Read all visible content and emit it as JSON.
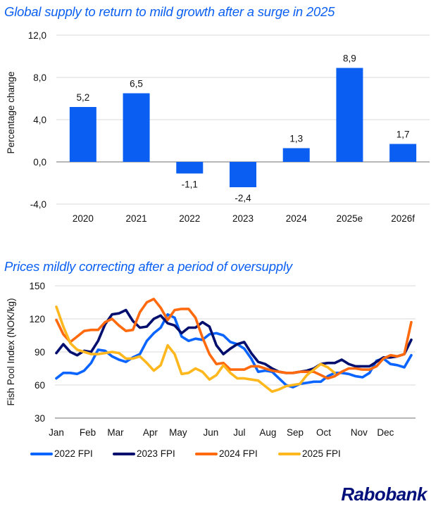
{
  "brand": {
    "logo_text": "Rabobank",
    "title_color": "#0a5ff2",
    "logo_color": "#000f7a"
  },
  "chart_data": [
    {
      "type": "bar",
      "title": "Global supply to return to mild growth after a surge in 2025",
      "xlabel": "",
      "ylabel": "Percentage change",
      "categories": [
        "2020",
        "2021",
        "2022",
        "2023",
        "2024",
        "2025e",
        "2026f"
      ],
      "values": [
        5.2,
        6.5,
        -1.1,
        -2.4,
        1.3,
        8.9,
        1.7
      ],
      "data_labels": [
        "5,2",
        "6,5",
        "-1,1",
        "-2,4",
        "1,3",
        "8,9",
        "1,7"
      ],
      "ylim": [
        -4,
        12
      ],
      "yticks": [
        -4,
        0,
        4,
        8,
        12
      ],
      "ytick_labels": [
        "-4,0",
        "0,0",
        "4,0",
        "8,0",
        "12,0"
      ],
      "grid": true,
      "bar_color": "#0a5ff2"
    },
    {
      "type": "line",
      "title": "Prices mildly correcting after a period of oversupply",
      "xlabel": "",
      "ylabel": "Fish Pool Index (NOK/kg)",
      "ylim": [
        30,
        150
      ],
      "yticks": [
        30,
        60,
        90,
        120,
        150
      ],
      "ytick_labels": [
        "30",
        "60",
        "90",
        "120",
        "150"
      ],
      "x_unit": "week",
      "xlim": [
        1,
        52
      ],
      "month_labels": [
        "Jan",
        "Feb",
        "Mar",
        "Apr",
        "May",
        "Jun",
        "Jul",
        "Aug",
        "Sep",
        "Oct",
        "Nov",
        "Dec"
      ],
      "month_label_weeks": [
        1,
        5.5,
        9.5,
        14.5,
        18.5,
        23.2,
        27.3,
        31.4,
        35.3,
        39.4,
        44.5,
        48.3
      ],
      "grid": true,
      "legend": "bottom",
      "series": [
        {
          "name": "2022 FPI",
          "color": "#0a64ff",
          "values": [
            66,
            71,
            71,
            70,
            73,
            80,
            92,
            91,
            86,
            83,
            81,
            85,
            88,
            100,
            107,
            112,
            124,
            121,
            104,
            100,
            102,
            101,
            106,
            107,
            105,
            99,
            97,
            93,
            84,
            72,
            73,
            72,
            66,
            60,
            58,
            61,
            62,
            63,
            63,
            68,
            71,
            71,
            70,
            68,
            67,
            71,
            82,
            84,
            79,
            78,
            76,
            87
          ]
        },
        {
          "name": "2023 FPI",
          "color": "#000e6e",
          "values": [
            89,
            97,
            90,
            87,
            91,
            90,
            100,
            115,
            124,
            125,
            128,
            118,
            112,
            113,
            120,
            123,
            116,
            114,
            107,
            112,
            112,
            117,
            113,
            96,
            88,
            93,
            97,
            99,
            89,
            81,
            79,
            75,
            72,
            71,
            71,
            72,
            73,
            75,
            79,
            80,
            80,
            83,
            79,
            77,
            77,
            77,
            81,
            85,
            85,
            86,
            88,
            101
          ]
        },
        {
          "name": "2024 FPI",
          "color": "#ff6a0e",
          "values": [
            119,
            106,
            99,
            104,
            109,
            110,
            110,
            117,
            120,
            114,
            109,
            110,
            126,
            135,
            138,
            130,
            119,
            128,
            129,
            129,
            121,
            103,
            88,
            79,
            80,
            74,
            74,
            74,
            77,
            77,
            75,
            73,
            72,
            71,
            71,
            72,
            72,
            72,
            69,
            66,
            68,
            72,
            75,
            75,
            74,
            74,
            77,
            84,
            87,
            86,
            88,
            117
          ]
        },
        {
          "name": "2025 FPI",
          "color": "#ffb71e",
          "values": [
            131,
            113,
            98,
            92,
            90,
            88,
            88,
            89,
            90,
            89,
            84,
            84,
            86,
            80,
            73,
            78,
            96,
            88,
            70,
            71,
            75,
            72,
            65,
            69,
            78,
            71,
            66,
            66,
            65,
            64,
            59,
            54,
            56,
            59,
            60,
            61,
            69,
            74,
            79,
            76,
            71
          ]
        }
      ]
    }
  ]
}
